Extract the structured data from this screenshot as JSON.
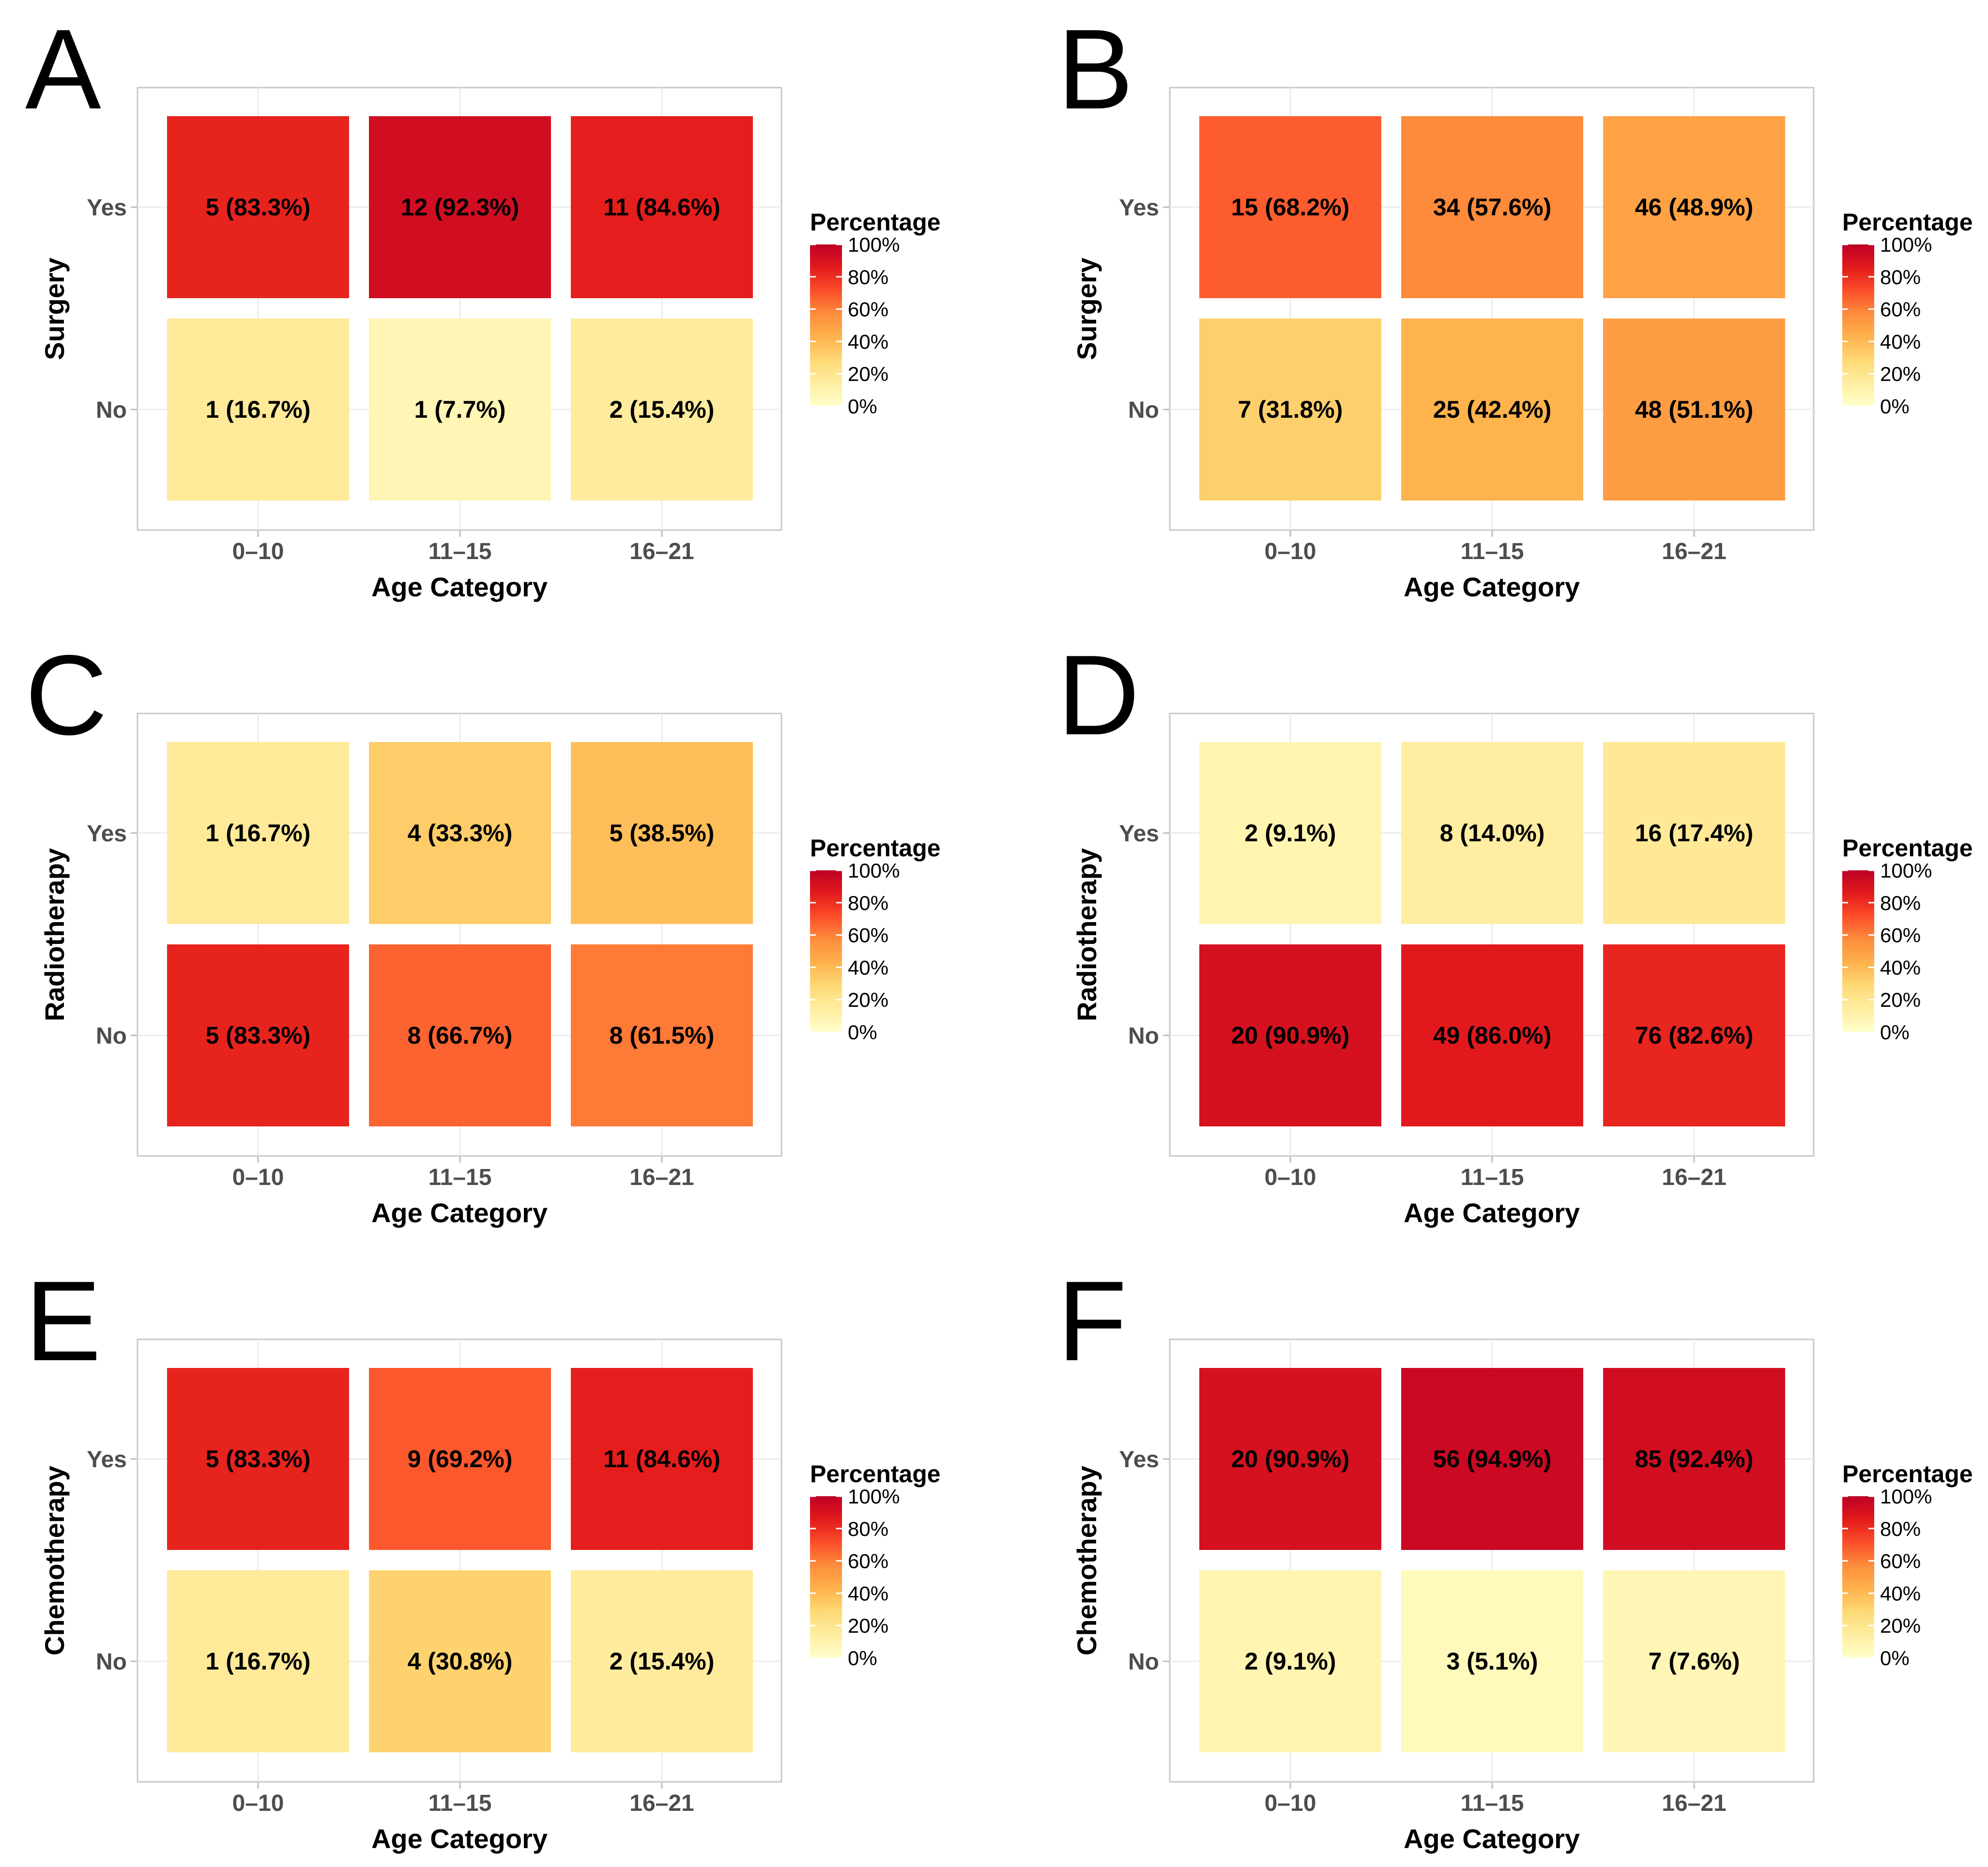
{
  "legend": {
    "title": "Percentage",
    "ticks": [
      {
        "value": 100,
        "label": "100%"
      },
      {
        "value": 80,
        "label": "80%"
      },
      {
        "value": 60,
        "label": "60%"
      },
      {
        "value": 40,
        "label": "40%"
      },
      {
        "value": 20,
        "label": "20%"
      },
      {
        "value": 0,
        "label": "0%"
      }
    ],
    "colors": [
      "#ffffcc",
      "#ffeda0",
      "#fed976",
      "#feb24c",
      "#fd8d3c",
      "#fc4e2a",
      "#e31a1c",
      "#bd0026"
    ]
  },
  "chart_data": [
    {
      "panel": "A",
      "type": "heatmap",
      "xlabel": "Age Category",
      "ylabel": "Surgery",
      "x_categories": [
        "0–10",
        "11–15",
        "16–21"
      ],
      "y_categories": [
        "Yes",
        "No"
      ],
      "value_range": [
        0,
        100
      ],
      "cells": [
        {
          "x": "0–10",
          "y": "Yes",
          "count": 5,
          "percent": 83.3,
          "label": "5 (83.3%)"
        },
        {
          "x": "11–15",
          "y": "Yes",
          "count": 12,
          "percent": 92.3,
          "label": "12 (92.3%)"
        },
        {
          "x": "16–21",
          "y": "Yes",
          "count": 11,
          "percent": 84.6,
          "label": "11 (84.6%)"
        },
        {
          "x": "0–10",
          "y": "No",
          "count": 1,
          "percent": 16.7,
          "label": "1 (16.7%)"
        },
        {
          "x": "11–15",
          "y": "No",
          "count": 1,
          "percent": 7.7,
          "label": "1 (7.7%)"
        },
        {
          "x": "16–21",
          "y": "No",
          "count": 2,
          "percent": 15.4,
          "label": "2 (15.4%)"
        }
      ]
    },
    {
      "panel": "B",
      "type": "heatmap",
      "xlabel": "Age Category",
      "ylabel": "Surgery",
      "x_categories": [
        "0–10",
        "11–15",
        "16–21"
      ],
      "y_categories": [
        "Yes",
        "No"
      ],
      "value_range": [
        0,
        100
      ],
      "cells": [
        {
          "x": "0–10",
          "y": "Yes",
          "count": 15,
          "percent": 68.2,
          "label": "15 (68.2%)"
        },
        {
          "x": "11–15",
          "y": "Yes",
          "count": 34,
          "percent": 57.6,
          "label": "34 (57.6%)"
        },
        {
          "x": "16–21",
          "y": "Yes",
          "count": 46,
          "percent": 48.9,
          "label": "46 (48.9%)"
        },
        {
          "x": "0–10",
          "y": "No",
          "count": 7,
          "percent": 31.8,
          "label": "7 (31.8%)"
        },
        {
          "x": "11–15",
          "y": "No",
          "count": 25,
          "percent": 42.4,
          "label": "25 (42.4%)"
        },
        {
          "x": "16–21",
          "y": "No",
          "count": 48,
          "percent": 51.1,
          "label": "48 (51.1%)"
        }
      ]
    },
    {
      "panel": "C",
      "type": "heatmap",
      "xlabel": "Age Category",
      "ylabel": "Radiotherapy",
      "x_categories": [
        "0–10",
        "11–15",
        "16–21"
      ],
      "y_categories": [
        "Yes",
        "No"
      ],
      "value_range": [
        0,
        100
      ],
      "cells": [
        {
          "x": "0–10",
          "y": "Yes",
          "count": 1,
          "percent": 16.7,
          "label": "1 (16.7%)"
        },
        {
          "x": "11–15",
          "y": "Yes",
          "count": 4,
          "percent": 33.3,
          "label": "4 (33.3%)"
        },
        {
          "x": "16–21",
          "y": "Yes",
          "count": 5,
          "percent": 38.5,
          "label": "5 (38.5%)"
        },
        {
          "x": "0–10",
          "y": "No",
          "count": 5,
          "percent": 83.3,
          "label": "5 (83.3%)"
        },
        {
          "x": "11–15",
          "y": "No",
          "count": 8,
          "percent": 66.7,
          "label": "8 (66.7%)"
        },
        {
          "x": "16–21",
          "y": "No",
          "count": 8,
          "percent": 61.5,
          "label": "8 (61.5%)"
        }
      ]
    },
    {
      "panel": "D",
      "type": "heatmap",
      "xlabel": "Age Category",
      "ylabel": "Radiotherapy",
      "x_categories": [
        "0–10",
        "11–15",
        "16–21"
      ],
      "y_categories": [
        "Yes",
        "No"
      ],
      "value_range": [
        0,
        100
      ],
      "cells": [
        {
          "x": "0–10",
          "y": "Yes",
          "count": 2,
          "percent": 9.1,
          "label": "2 (9.1%)"
        },
        {
          "x": "11–15",
          "y": "Yes",
          "count": 8,
          "percent": 14.0,
          "label": "8 (14.0%)"
        },
        {
          "x": "16–21",
          "y": "Yes",
          "count": 16,
          "percent": 17.4,
          "label": "16 (17.4%)"
        },
        {
          "x": "0–10",
          "y": "No",
          "count": 20,
          "percent": 90.9,
          "label": "20 (90.9%)"
        },
        {
          "x": "11–15",
          "y": "No",
          "count": 49,
          "percent": 86.0,
          "label": "49 (86.0%)"
        },
        {
          "x": "16–21",
          "y": "No",
          "count": 76,
          "percent": 82.6,
          "label": "76 (82.6%)"
        }
      ]
    },
    {
      "panel": "E",
      "type": "heatmap",
      "xlabel": "Age Category",
      "ylabel": "Chemotherapy",
      "x_categories": [
        "0–10",
        "11–15",
        "16–21"
      ],
      "y_categories": [
        "Yes",
        "No"
      ],
      "value_range": [
        0,
        100
      ],
      "cells": [
        {
          "x": "0–10",
          "y": "Yes",
          "count": 5,
          "percent": 83.3,
          "label": "5 (83.3%)"
        },
        {
          "x": "11–15",
          "y": "Yes",
          "count": 9,
          "percent": 69.2,
          "label": "9 (69.2%)"
        },
        {
          "x": "16–21",
          "y": "Yes",
          "count": 11,
          "percent": 84.6,
          "label": "11 (84.6%)"
        },
        {
          "x": "0–10",
          "y": "No",
          "count": 1,
          "percent": 16.7,
          "label": "1 (16.7%)"
        },
        {
          "x": "11–15",
          "y": "No",
          "count": 4,
          "percent": 30.8,
          "label": "4 (30.8%)"
        },
        {
          "x": "16–21",
          "y": "No",
          "count": 2,
          "percent": 15.4,
          "label": "2 (15.4%)"
        }
      ]
    },
    {
      "panel": "F",
      "type": "heatmap",
      "xlabel": "Age Category",
      "ylabel": "Chemotherapy",
      "x_categories": [
        "0–10",
        "11–15",
        "16–21"
      ],
      "y_categories": [
        "Yes",
        "No"
      ],
      "value_range": [
        0,
        100
      ],
      "cells": [
        {
          "x": "0–10",
          "y": "Yes",
          "count": 20,
          "percent": 90.9,
          "label": "20 (90.9%)"
        },
        {
          "x": "11–15",
          "y": "Yes",
          "count": 56,
          "percent": 94.9,
          "label": "56 (94.9%)"
        },
        {
          "x": "16–21",
          "y": "Yes",
          "count": 85,
          "percent": 92.4,
          "label": "85 (92.4%)"
        },
        {
          "x": "0–10",
          "y": "No",
          "count": 2,
          "percent": 9.1,
          "label": "2 (9.1%)"
        },
        {
          "x": "11–15",
          "y": "No",
          "count": 3,
          "percent": 5.1,
          "label": "3 (5.1%)"
        },
        {
          "x": "16–21",
          "y": "No",
          "count": 7,
          "percent": 7.6,
          "label": "7 (7.6%)"
        }
      ]
    }
  ]
}
